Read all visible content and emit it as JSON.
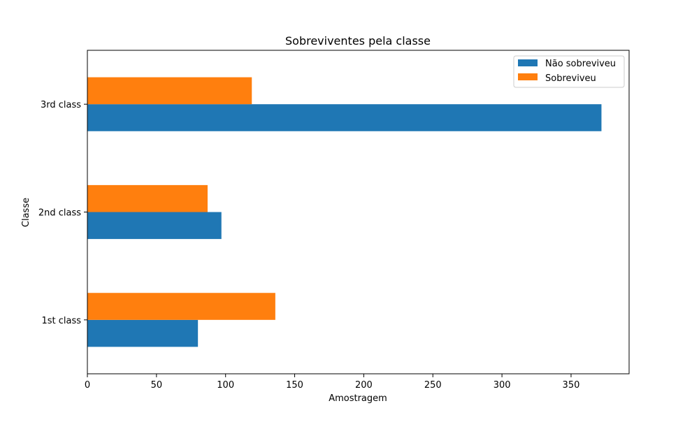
{
  "chart_data": {
    "type": "bar",
    "orientation": "horizontal",
    "title": "Sobreviventes pela classe",
    "xlabel": "Amostragem",
    "ylabel": "Classe",
    "categories": [
      "1st class",
      "2nd class",
      "3rd class"
    ],
    "xlim": [
      0,
      392
    ],
    "xticks": [
      0,
      50,
      100,
      150,
      200,
      250,
      300,
      350
    ],
    "series": [
      {
        "name": "Não sobreviveu",
        "color": "#1f77b4",
        "values": [
          80,
          97,
          372
        ]
      },
      {
        "name": "Sobreviveu",
        "color": "#ff7f0e",
        "values": [
          136,
          87,
          119
        ]
      }
    ],
    "legend": {
      "position": "top-right"
    },
    "grid": false
  }
}
